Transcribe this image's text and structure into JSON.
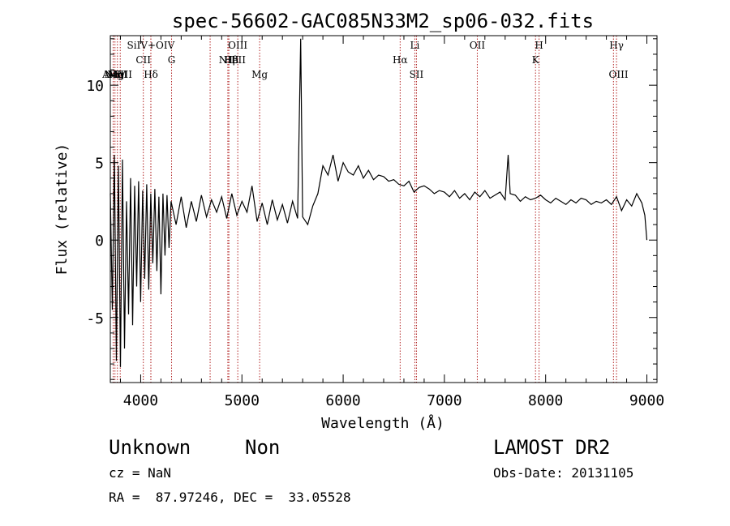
{
  "chart_data": {
    "type": "line",
    "title": "spec-56602-GAC085N33M2_sp06-032.fits",
    "xlabel": "Wavelength (Å)",
    "ylabel": "Flux (relative)",
    "xlim": [
      3700,
      9100
    ],
    "ylim": [
      -9.2,
      13.2
    ],
    "x_ticks": [
      4000,
      5000,
      6000,
      7000,
      8000,
      9000
    ],
    "y_ticks": [
      -5,
      0,
      5,
      10
    ],
    "line_color": "#000000",
    "marker_color": "#b22222",
    "series": [
      {
        "x": [
          3700,
          3720,
          3740,
          3760,
          3780,
          3800,
          3820,
          3840,
          3860,
          3880,
          3900,
          3920,
          3940,
          3960,
          3980,
          4000,
          4020,
          4040,
          4060,
          4080,
          4100,
          4120,
          4140,
          4160,
          4180,
          4200,
          4220,
          4240,
          4260,
          4280,
          4300,
          4350,
          4400,
          4450,
          4500,
          4550,
          4600,
          4650,
          4700,
          4750,
          4800,
          4850,
          4900,
          4950,
          5000,
          5050,
          5100,
          5150,
          5200,
          5250,
          5300,
          5350,
          5400,
          5450,
          5500,
          5550,
          5580,
          5600,
          5650,
          5700,
          5750,
          5800,
          5850,
          5900,
          5950,
          6000,
          6050,
          6100,
          6150,
          6200,
          6250,
          6300,
          6350,
          6400,
          6450,
          6500,
          6550,
          6600,
          6650,
          6700,
          6750,
          6800,
          6850,
          6900,
          6950,
          7000,
          7050,
          7100,
          7150,
          7200,
          7250,
          7300,
          7350,
          7400,
          7450,
          7500,
          7550,
          7600,
          7630,
          7650,
          7700,
          7750,
          7800,
          7850,
          7900,
          7950,
          8000,
          8050,
          8100,
          8150,
          8200,
          8250,
          8300,
          8350,
          8400,
          8450,
          8500,
          8550,
          8600,
          8650,
          8700,
          8750,
          8800,
          8850,
          8900,
          8950,
          8980,
          9000
        ],
        "y": [
          3.0,
          -4.5,
          5.5,
          -7.8,
          4.8,
          -8.2,
          5.2,
          -7.0,
          2.5,
          -4.8,
          4.0,
          -5.5,
          3.5,
          -3.0,
          3.8,
          -4.0,
          3.2,
          -2.5,
          3.6,
          -3.2,
          3.0,
          -1.5,
          3.3,
          -2.0,
          2.8,
          -3.5,
          3.0,
          -1.0,
          2.9,
          -0.5,
          2.5,
          1.0,
          2.8,
          0.8,
          2.5,
          1.2,
          2.9,
          1.5,
          2.6,
          1.8,
          2.8,
          1.4,
          3.0,
          1.6,
          2.5,
          1.8,
          3.5,
          1.2,
          2.4,
          1.0,
          2.6,
          1.3,
          2.3,
          1.1,
          2.5,
          1.4,
          13.0,
          1.5,
          1.0,
          2.2,
          3.0,
          4.8,
          4.2,
          5.5,
          3.8,
          5.0,
          4.4,
          4.2,
          4.8,
          4.0,
          4.5,
          3.9,
          4.2,
          4.1,
          3.8,
          3.9,
          3.6,
          3.5,
          3.8,
          3.1,
          3.4,
          3.5,
          3.3,
          3.0,
          3.2,
          3.1,
          2.8,
          3.2,
          2.7,
          3.0,
          2.6,
          3.1,
          2.8,
          3.2,
          2.7,
          2.9,
          3.1,
          2.6,
          5.5,
          3.0,
          2.9,
          2.5,
          2.8,
          2.6,
          2.7,
          2.9,
          2.6,
          2.4,
          2.7,
          2.5,
          2.3,
          2.6,
          2.4,
          2.7,
          2.6,
          2.3,
          2.5,
          2.4,
          2.6,
          2.3,
          2.8,
          1.9,
          2.6,
          2.2,
          3.0,
          2.4,
          1.6,
          0.0
        ]
      }
    ],
    "lines": [
      {
        "name": "AlIII",
        "wavelength": 3728
      },
      {
        "name": "NeV",
        "wavelength": 3746
      },
      {
        "name": "MgI",
        "wavelength": 3770
      },
      {
        "name": "MgII",
        "wavelength": 3798
      },
      {
        "name": "SiIV+OIV",
        "wavelength": 4026
      },
      {
        "name": "CII",
        "wavelength": 4100
      },
      {
        "name": "Hδ",
        "wavelength": 4101
      },
      {
        "name": "G",
        "wavelength": 4305
      },
      {
        "name": "HeII",
        "wavelength": 4686
      },
      {
        "name": "OIII",
        "wavelength": 4959
      },
      {
        "name": "NIII",
        "wavelength": 4871
      },
      {
        "name": "Hβ",
        "wavelength": 4861
      },
      {
        "name": "Mg",
        "wavelength": 5175
      },
      {
        "name": "Hα",
        "wavelength": 6563
      },
      {
        "name": "Li",
        "wavelength": 6708
      },
      {
        "name": "SII",
        "wavelength": 6724
      },
      {
        "name": "OII",
        "wavelength": 7325
      },
      {
        "name": "K",
        "wavelength": 7900
      },
      {
        "name": "H",
        "wavelength": 7935
      },
      {
        "name": "Hγ",
        "wavelength": 8670
      },
      {
        "name": "OIII",
        "wavelength": 8700
      }
    ]
  },
  "info": {
    "classification": "Unknown",
    "subclass": "Non",
    "survey": "LAMOST DR2",
    "cz": "cz = NaN",
    "obs_date": "Obs-Date: 20131105",
    "coords": "RA =  87.97246, DEC =  33.05528"
  },
  "line_labels": [
    {
      "text": "AlIII",
      "wl": 3728,
      "row": 2
    },
    {
      "text": "NeV",
      "wl": 3746,
      "row": 2
    },
    {
      "text": "MgI",
      "wl": 3770,
      "row": 2
    },
    {
      "text": "MgII",
      "wl": 3798,
      "row": 2
    },
    {
      "text": "SiIV+OIV",
      "wl": 4100,
      "row": 0
    },
    {
      "text": "CII",
      "wl": 4026,
      "row": 1
    },
    {
      "text": "Hδ",
      "wl": 4101,
      "row": 2
    },
    {
      "text": "G",
      "wl": 4305,
      "row": 1
    },
    {
      "text": "OIII",
      "wl": 4959,
      "row": 0
    },
    {
      "text": "NIII",
      "wl": 4871,
      "row": 1
    },
    {
      "text": "Hβ",
      "wl": 4895,
      "row": 1
    },
    {
      "text": "HeII",
      "wl": 4930,
      "row": 1
    },
    {
      "text": "Mg",
      "wl": 5175,
      "row": 2
    },
    {
      "text": "Li",
      "wl": 6708,
      "row": 0
    },
    {
      "text": "Hα",
      "wl": 6563,
      "row": 1
    },
    {
      "text": "SII",
      "wl": 6724,
      "row": 2
    },
    {
      "text": "OII",
      "wl": 7325,
      "row": 0
    },
    {
      "text": "H",
      "wl": 7935,
      "row": 0
    },
    {
      "text": "K",
      "wl": 7900,
      "row": 1
    },
    {
      "text": "Hγ",
      "wl": 8700,
      "row": 0
    },
    {
      "text": "OIII",
      "wl": 8720,
      "row": 2
    }
  ]
}
